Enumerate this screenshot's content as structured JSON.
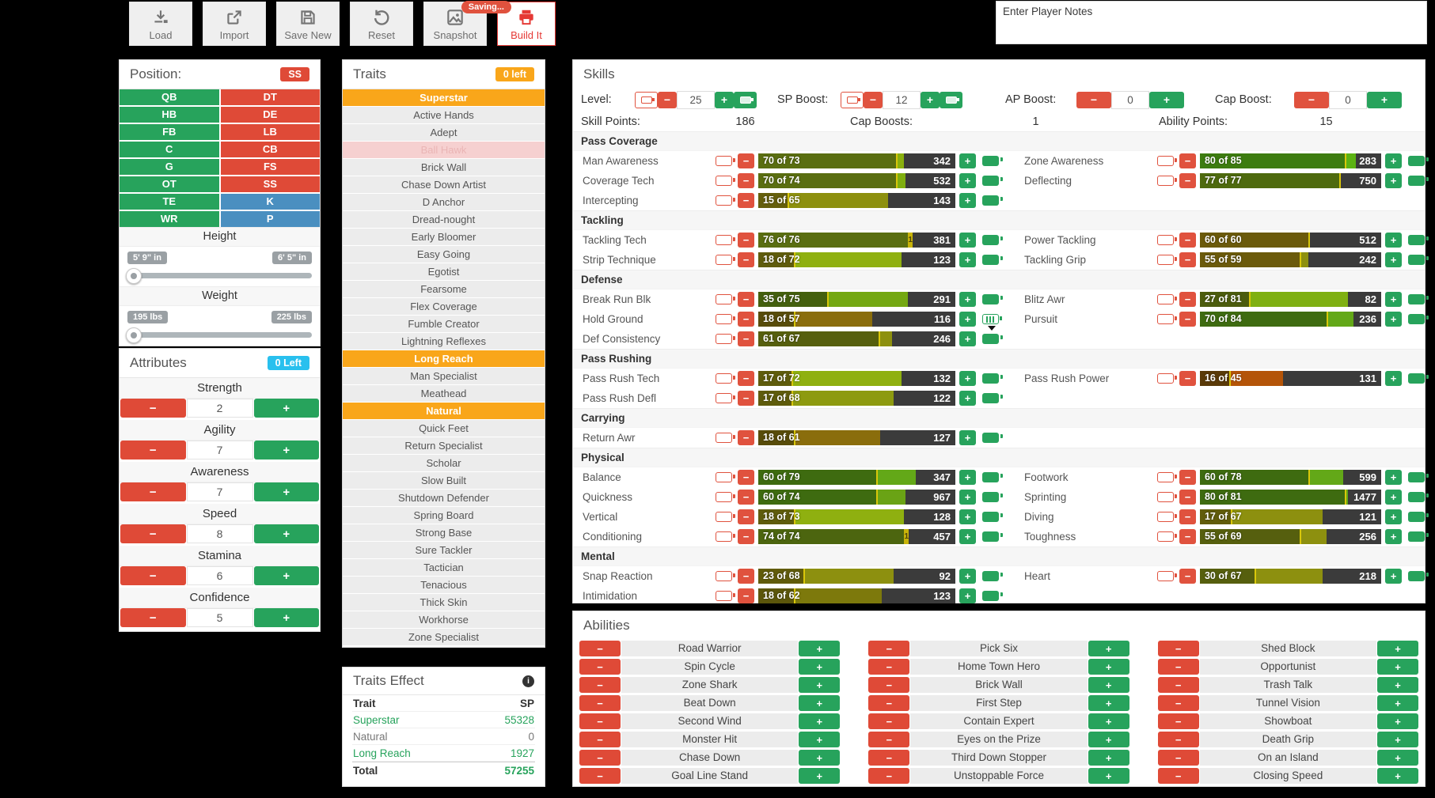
{
  "colors": {
    "green": "#27a35c",
    "red": "#df4a37",
    "blue": "#4a8fc0",
    "orange": "#f9a61a",
    "cyan": "#29c0ee",
    "danger": "#e53935",
    "bar_bg": "#3b3b3b",
    "divider": "#d9c70a"
  },
  "toolbar": {
    "buttons": [
      {
        "label": "Load",
        "icon": "download-icon"
      },
      {
        "label": "Import",
        "icon": "export-icon"
      },
      {
        "label": "Save New",
        "icon": "save-icon"
      },
      {
        "label": "Reset",
        "icon": "reset-icon"
      },
      {
        "label": "Snapshot",
        "icon": "snapshot-icon",
        "badge": "Saving..."
      },
      {
        "label": "Build It",
        "icon": "print-icon",
        "variant": "danger"
      }
    ],
    "notes_placeholder": "Enter Player Notes"
  },
  "position_panel": {
    "title": "Position:",
    "badge": "SS",
    "left_positions": [
      "QB",
      "HB",
      "FB",
      "C",
      "G",
      "OT",
      "TE",
      "WR"
    ],
    "right_positions": [
      {
        "label": "DT",
        "color": "red"
      },
      {
        "label": "DE",
        "color": "red"
      },
      {
        "label": "LB",
        "color": "red"
      },
      {
        "label": "CB",
        "color": "red"
      },
      {
        "label": "FS",
        "color": "red"
      },
      {
        "label": "SS",
        "color": "red"
      },
      {
        "label": "K",
        "color": "blue"
      },
      {
        "label": "P",
        "color": "blue"
      }
    ],
    "height": {
      "label": "Height",
      "min": "5' 9\" in",
      "max": "6' 5\" in"
    },
    "weight": {
      "label": "Weight",
      "min": "195 lbs",
      "max": "225 lbs"
    }
  },
  "attributes_panel": {
    "title": "Attributes",
    "badge": "0 Left",
    "attributes": [
      {
        "name": "Strength",
        "value": "2"
      },
      {
        "name": "Agility",
        "value": "7"
      },
      {
        "name": "Awareness",
        "value": "7"
      },
      {
        "name": "Speed",
        "value": "8"
      },
      {
        "name": "Stamina",
        "value": "6"
      },
      {
        "name": "Confidence",
        "value": "5"
      }
    ]
  },
  "traits_panel": {
    "title": "Traits",
    "badge": "0 left",
    "traits": [
      {
        "name": "Superstar",
        "state": "selected"
      },
      {
        "name": "Active Hands",
        "state": "normal"
      },
      {
        "name": "Adept",
        "state": "normal"
      },
      {
        "name": "Ball Hawk",
        "state": "disabled"
      },
      {
        "name": "Brick Wall",
        "state": "normal"
      },
      {
        "name": "Chase Down Artist",
        "state": "normal"
      },
      {
        "name": "D Anchor",
        "state": "normal"
      },
      {
        "name": "Dread-nought",
        "state": "normal"
      },
      {
        "name": "Early Bloomer",
        "state": "normal"
      },
      {
        "name": "Easy Going",
        "state": "normal"
      },
      {
        "name": "Egotist",
        "state": "normal"
      },
      {
        "name": "Fearsome",
        "state": "normal"
      },
      {
        "name": "Flex Coverage",
        "state": "normal"
      },
      {
        "name": "Fumble Creator",
        "state": "normal"
      },
      {
        "name": "Lightning Reflexes",
        "state": "normal"
      },
      {
        "name": "Long Reach",
        "state": "selected"
      },
      {
        "name": "Man Specialist",
        "state": "normal"
      },
      {
        "name": "Meathead",
        "state": "normal"
      },
      {
        "name": "Natural",
        "state": "selected"
      },
      {
        "name": "Quick Feet",
        "state": "normal"
      },
      {
        "name": "Return Specialist",
        "state": "normal"
      },
      {
        "name": "Scholar",
        "state": "normal"
      },
      {
        "name": "Slow Built",
        "state": "normal"
      },
      {
        "name": "Shutdown Defender",
        "state": "normal"
      },
      {
        "name": "Spring Board",
        "state": "normal"
      },
      {
        "name": "Strong Base",
        "state": "normal"
      },
      {
        "name": "Sure Tackler",
        "state": "normal"
      },
      {
        "name": "Tactician",
        "state": "normal"
      },
      {
        "name": "Tenacious",
        "state": "normal"
      },
      {
        "name": "Thick Skin",
        "state": "normal"
      },
      {
        "name": "Workhorse",
        "state": "normal"
      },
      {
        "name": "Zone Specialist",
        "state": "normal"
      }
    ]
  },
  "traits_effect": {
    "title": "Traits Effect",
    "col_trait": "Trait",
    "col_sp": "SP",
    "rows": [
      {
        "name": "Superstar",
        "sp": "55328",
        "highlight": true
      },
      {
        "name": "Natural",
        "sp": "0",
        "highlight": false
      },
      {
        "name": "Long Reach",
        "sp": "1927",
        "highlight": true
      }
    ],
    "total_label": "Total",
    "total": "57255"
  },
  "skills_panel": {
    "title": "Skills",
    "controls": {
      "level": {
        "label": "Level:",
        "value": "25",
        "batteries": true
      },
      "sp_boost": {
        "label": "SP Boost:",
        "value": "12",
        "batteries": true
      },
      "ap_boost": {
        "label": "AP Boost:",
        "value": "0",
        "batteries": false
      },
      "cap_boost": {
        "label": "Cap Boost:",
        "value": "0",
        "batteries": false
      }
    },
    "stats": {
      "skill_points": {
        "label": "Skill Points:",
        "value": "186"
      },
      "cap_boosts": {
        "label": "Cap Boosts:",
        "value": "1"
      },
      "ability_points": {
        "label": "Ability Points:",
        "value": "15"
      }
    },
    "of_word": "of",
    "groups": [
      {
        "name": "Pass Coverage",
        "left": [
          {
            "name": "Man Awareness",
            "cur": 70,
            "cap": 73,
            "cost": "342",
            "cur_color": "#5a6e11",
            "cap_color": "#8ab00f"
          },
          {
            "name": "Coverage Tech",
            "cur": 70,
            "cap": 74,
            "cost": "532",
            "cur_color": "#5a6e11",
            "cap_color": "#7fae10"
          },
          {
            "name": "Intercepting",
            "cur": 15,
            "cap": 65,
            "cost": "143",
            "cur_color": "#655f0c",
            "cap_color": "#8d900f"
          }
        ],
        "right": [
          {
            "name": "Zone Awareness",
            "cur": 80,
            "cap": 85,
            "cost": "283",
            "cur_color": "#3d7c10",
            "cap_color": "#5cb313"
          },
          {
            "name": "Deflecting",
            "cur": 77,
            "cap": 77,
            "cost": "750",
            "cur_color": "#4e6a0e",
            "cap_color": "#4e6a0e"
          }
        ]
      },
      {
        "name": "Tackling",
        "left": [
          {
            "name": "Tackling Tech",
            "cur": 76,
            "cap": 76,
            "cost": "381",
            "cur_color": "#5a6e11",
            "cap_color": "#5a6e11",
            "marker": "1"
          },
          {
            "name": "Strip Technique",
            "cur": 18,
            "cap": 72,
            "cost": "123",
            "cur_color": "#5f5c0c",
            "cap_color": "#8fb010"
          }
        ],
        "right": [
          {
            "name": "Power Tackling",
            "cur": 60,
            "cap": 60,
            "cost": "512",
            "cur_color": "#6b5a0b",
            "cap_color": "#6b5a0b"
          },
          {
            "name": "Tackling Grip",
            "cur": 55,
            "cap": 59,
            "cost": "242",
            "cur_color": "#6b5a0b",
            "cap_color": "#8d900f"
          }
        ]
      },
      {
        "name": "Defense",
        "left": [
          {
            "name": "Break Run Blk",
            "cur": 35,
            "cap": 75,
            "cost": "291",
            "cur_color": "#44600e",
            "cap_color": "#74a812"
          },
          {
            "name": "Hold Ground",
            "cur": 18,
            "cap": 57,
            "cost": "116",
            "cur_color": "#584c0a",
            "cap_color": "#8a6d0c",
            "charging": true
          },
          {
            "name": "Def Consistency",
            "cur": 61,
            "cap": 67,
            "cost": "246",
            "cur_color": "#565f0e",
            "cap_color": "#8d900f"
          }
        ],
        "right": [
          {
            "name": "Blitz Awr",
            "cur": 27,
            "cap": 81,
            "cost": "82",
            "cur_color": "#4c5c0d",
            "cap_color": "#7fb012"
          },
          {
            "name": "Pursuit",
            "cur": 70,
            "cap": 84,
            "cost": "236",
            "cur_color": "#3e6b10",
            "cap_color": "#63a818"
          }
        ]
      },
      {
        "name": "Pass Rushing",
        "left": [
          {
            "name": "Pass Rush Tech",
            "cur": 17,
            "cap": 72,
            "cost": "132",
            "cur_color": "#5f5c0c",
            "cap_color": "#8fb010"
          },
          {
            "name": "Pass Rush Defl",
            "cur": 17,
            "cap": 68,
            "cost": "122",
            "cur_color": "#5f5c0c",
            "cap_color": "#8d9a10"
          }
        ],
        "right": [
          {
            "name": "Pass Rush Power",
            "cur": 16,
            "cap": 45,
            "cost": "131",
            "cur_color": "#5a3a08",
            "cap_color": "#b45408"
          }
        ]
      },
      {
        "name": "Carrying",
        "left": [
          {
            "name": "Return Awr",
            "cur": 18,
            "cap": 61,
            "cost": "127",
            "cur_color": "#584c0a",
            "cap_color": "#8a6d0c"
          }
        ],
        "right": []
      },
      {
        "name": "Physical",
        "left": [
          {
            "name": "Balance",
            "cur": 60,
            "cap": 79,
            "cost": "347",
            "cur_color": "#3e6b10",
            "cap_color": "#63a818"
          },
          {
            "name": "Quickness",
            "cur": 60,
            "cap": 74,
            "cost": "967",
            "cur_color": "#3e6b10",
            "cap_color": "#6aa315"
          },
          {
            "name": "Vertical",
            "cur": 18,
            "cap": 73,
            "cost": "128",
            "cur_color": "#5f5c0c",
            "cap_color": "#8fb010"
          },
          {
            "name": "Conditioning",
            "cur": 74,
            "cap": 74,
            "cost": "457",
            "cur_color": "#4c650f",
            "cap_color": "#4c650f",
            "marker": "1"
          }
        ],
        "right": [
          {
            "name": "Footwork",
            "cur": 60,
            "cap": 78,
            "cost": "599",
            "cur_color": "#3e6b10",
            "cap_color": "#63a818"
          },
          {
            "name": "Sprinting",
            "cur": 80,
            "cap": 81,
            "cost": "1477",
            "cur_color": "#3e6b10",
            "cap_color": "#63a818"
          },
          {
            "name": "Diving",
            "cur": 17,
            "cap": 67,
            "cost": "121",
            "cur_color": "#615c0b",
            "cap_color": "#8d900f"
          },
          {
            "name": "Toughness",
            "cur": 55,
            "cap": 69,
            "cost": "256",
            "cur_color": "#565f0e",
            "cap_color": "#8d900f"
          }
        ]
      },
      {
        "name": "Mental",
        "left": [
          {
            "name": "Snap Reaction",
            "cur": 23,
            "cap": 68,
            "cost": "92",
            "cur_color": "#615c0b",
            "cap_color": "#8d900f"
          },
          {
            "name": "Intimidation",
            "cur": 18,
            "cap": 62,
            "cost": "123",
            "cur_color": "#5c560b",
            "cap_color": "#7d790c"
          }
        ],
        "right": [
          {
            "name": "Heart",
            "cur": 30,
            "cap": 67,
            "cost": "218",
            "cur_color": "#565f0e",
            "cap_color": "#8d900f"
          }
        ]
      }
    ]
  },
  "abilities_panel": {
    "title": "Abilities",
    "columns": [
      [
        "Road Warrior",
        "Spin Cycle",
        "Zone Shark",
        "Beat Down",
        "Second Wind",
        "Monster Hit",
        "Chase Down",
        "Goal Line Stand"
      ],
      [
        "Pick Six",
        "Home Town Hero",
        "Brick Wall",
        "First Step",
        "Contain Expert",
        "Eyes on the Prize",
        "Third Down Stopper",
        "Unstoppable Force"
      ],
      [
        "Shed Block",
        "Opportunist",
        "Trash Talk",
        "Tunnel Vision",
        "Showboat",
        "Death Grip",
        "On an Island",
        "Closing Speed"
      ]
    ]
  }
}
